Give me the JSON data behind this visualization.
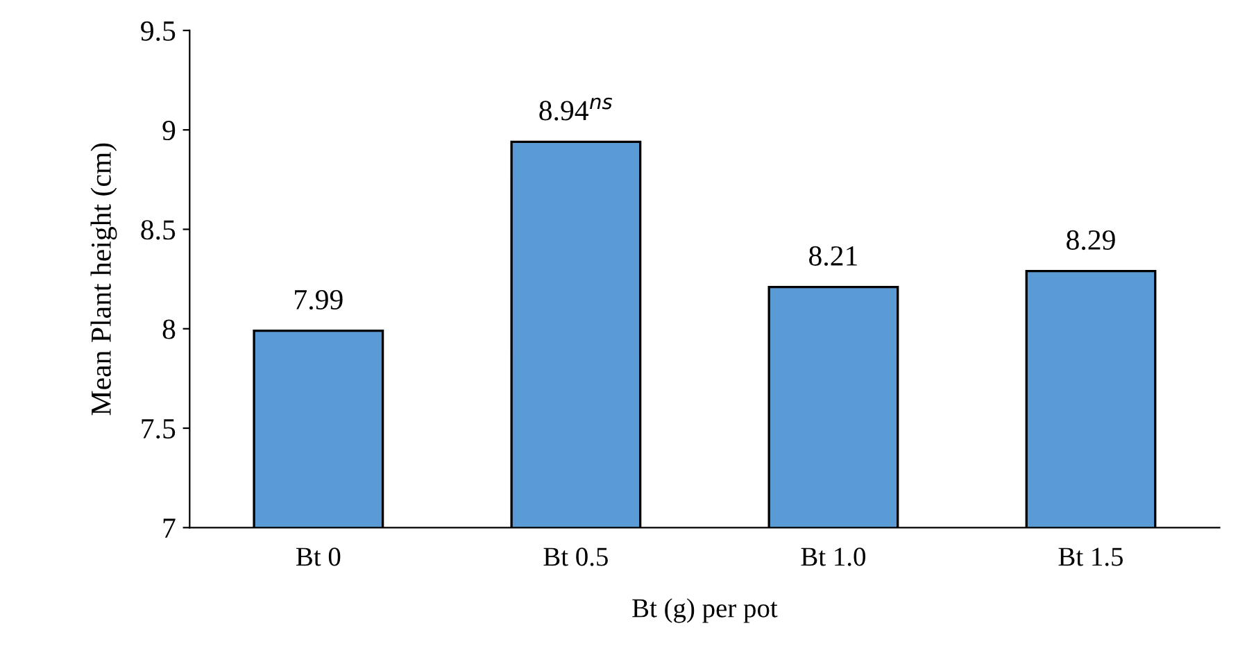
{
  "chart_data": {
    "type": "bar",
    "xlabel": "Bt (g) per pot",
    "ylabel": "Mean Plant height (cm)",
    "categories": [
      "Bt 0",
      "Bt 0.5",
      "Bt 1.0",
      "Bt 1.5"
    ],
    "values": [
      7.99,
      8.94,
      8.21,
      8.29
    ],
    "value_labels": [
      "7.99",
      "8.94$^{ns}$",
      "8.21",
      "8.29"
    ],
    "color": "#5b9bd5",
    "ylim": [
      7,
      9.5
    ],
    "yticks": [
      7,
      7.5,
      8,
      8.5,
      9,
      9.5
    ],
    "grid": false,
    "legend": false
  }
}
